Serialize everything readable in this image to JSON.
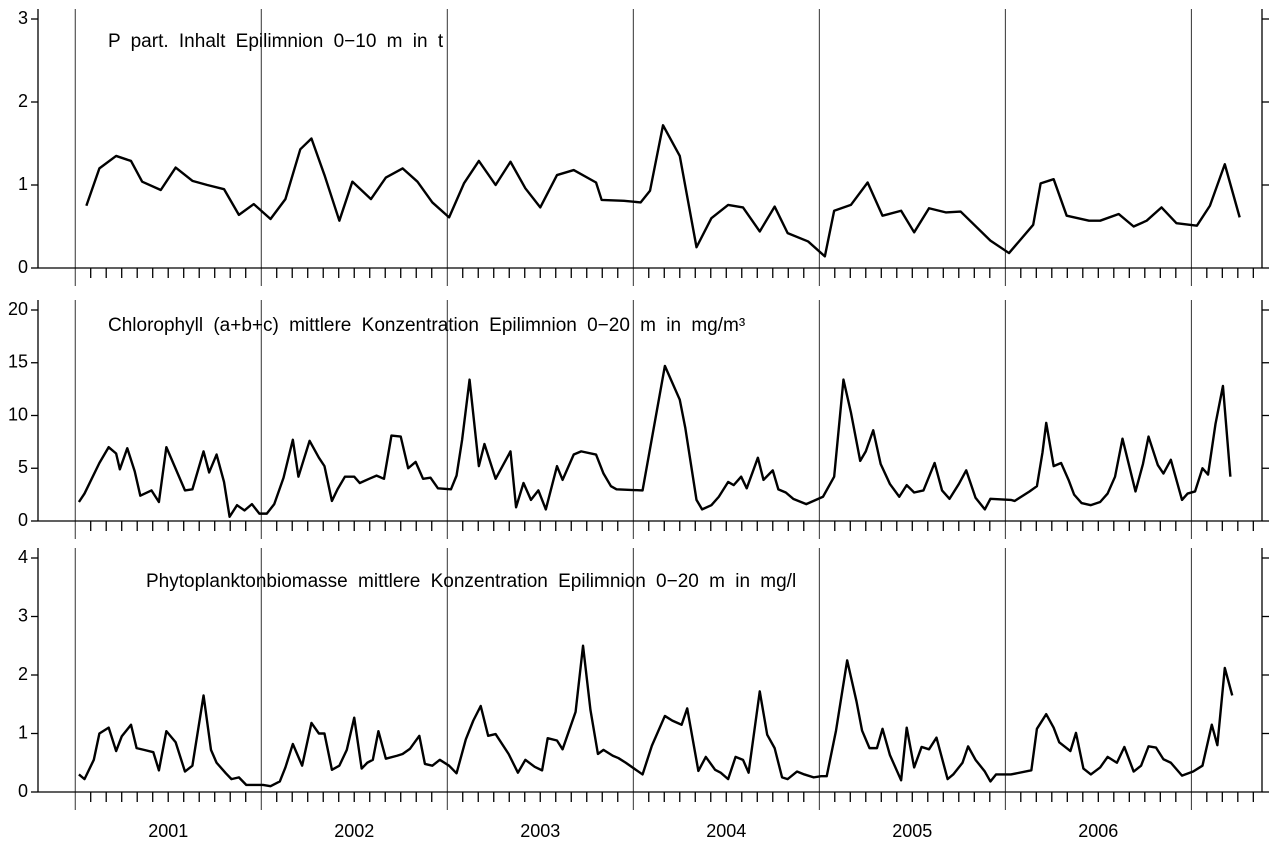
{
  "chart_data": [
    {
      "type": "line",
      "title": "P part. Inhalt Epilimnion 0−10 m in t",
      "xlim": [
        2000.8,
        2007.38
      ],
      "vlines": [
        2001,
        2002,
        2003,
        2004,
        2005,
        2006,
        2007
      ],
      "ylim": [
        0,
        3
      ],
      "yticks": [
        0,
        1,
        2,
        3
      ],
      "x": [
        2001.06,
        2001.13,
        2001.22,
        2001.3,
        2001.36,
        2001.46,
        2001.54,
        2001.63,
        2001.71,
        2001.8,
        2001.88,
        2001.96,
        2002.05,
        2002.13,
        2002.21,
        2002.27,
        2002.34,
        2002.42,
        2002.49,
        2002.59,
        2002.67,
        2002.76,
        2002.84,
        2002.92,
        2003.01,
        2003.09,
        2003.17,
        2003.26,
        2003.34,
        2003.42,
        2003.5,
        2003.59,
        2003.68,
        2003.8,
        2003.83,
        2003.95,
        2004.04,
        2004.09,
        2004.16,
        2004.25,
        2004.34,
        2004.42,
        2004.51,
        2004.59,
        2004.68,
        2004.76,
        2004.83,
        2004.94,
        2005.03,
        2005.08,
        2005.17,
        2005.26,
        2005.34,
        2005.44,
        2005.51,
        2005.59,
        2005.68,
        2005.76,
        2005.92,
        2006.02,
        2006.15,
        2006.19,
        2006.26,
        2006.33,
        2006.45,
        2006.51,
        2006.61,
        2006.69,
        2006.76,
        2006.84,
        2006.92,
        2007.03,
        2007.1,
        2007.18,
        2007.26
      ],
      "series": [
        {
          "color": "#000000",
          "values": [
            0.75,
            1.2,
            1.35,
            1.29,
            1.04,
            0.94,
            1.21,
            1.05,
            1.0,
            0.95,
            0.64,
            0.77,
            0.59,
            0.83,
            1.43,
            1.56,
            1.12,
            0.57,
            1.04,
            0.83,
            1.09,
            1.2,
            1.04,
            0.79,
            0.61,
            1.02,
            1.29,
            1.0,
            1.28,
            0.96,
            0.73,
            1.12,
            1.18,
            1.03,
            0.82,
            0.81,
            0.79,
            0.93,
            1.72,
            1.35,
            0.25,
            0.6,
            0.76,
            0.73,
            0.44,
            0.74,
            0.42,
            0.32,
            0.14,
            0.69,
            0.76,
            1.03,
            0.63,
            0.69,
            0.43,
            0.72,
            0.67,
            0.68,
            0.33,
            0.18,
            0.52,
            1.02,
            1.07,
            0.63,
            0.57,
            0.57,
            0.65,
            0.5,
            0.57,
            0.73,
            0.54,
            0.51,
            0.75,
            1.25,
            0.61
          ]
        }
      ]
    },
    {
      "type": "line",
      "title": "Chlorophyll (a+b+c) mittlere Konzentration Epilimnion 0−20 m in mg/m³",
      "xlim": [
        2000.8,
        2007.38
      ],
      "vlines": [
        2001,
        2002,
        2003,
        2004,
        2005,
        2006,
        2007
      ],
      "ylim": [
        0,
        20
      ],
      "yticks": [
        0,
        5,
        10,
        15,
        20
      ],
      "x": [
        2001.02,
        2001.05,
        2001.13,
        2001.18,
        2001.22,
        2001.24,
        2001.28,
        2001.32,
        2001.35,
        2001.41,
        2001.45,
        2001.49,
        2001.59,
        2001.63,
        2001.69,
        2001.72,
        2001.76,
        2001.8,
        2001.83,
        2001.87,
        2001.91,
        2001.95,
        2001.99,
        2002.03,
        2002.07,
        2002.12,
        2002.17,
        2002.2,
        2002.26,
        2002.31,
        2002.34,
        2002.38,
        2002.41,
        2002.45,
        2002.5,
        2002.53,
        2002.58,
        2002.62,
        2002.66,
        2002.7,
        2002.75,
        2002.79,
        2002.83,
        2002.87,
        2002.91,
        2002.95,
        2003.02,
        2003.05,
        2003.08,
        2003.12,
        2003.17,
        2003.2,
        2003.26,
        2003.34,
        2003.37,
        2003.41,
        2003.45,
        2003.49,
        2003.53,
        2003.59,
        2003.62,
        2003.68,
        2003.72,
        2003.8,
        2003.84,
        2003.88,
        2003.91,
        2004.05,
        2004.17,
        2004.25,
        2004.28,
        2004.34,
        2004.37,
        2004.42,
        2004.46,
        2004.51,
        2004.54,
        2004.58,
        2004.61,
        2004.67,
        2004.7,
        2004.75,
        2004.78,
        2004.82,
        2004.86,
        2004.93,
        2005.02,
        2005.08,
        2005.13,
        2005.17,
        2005.22,
        2005.25,
        2005.29,
        2005.33,
        2005.38,
        2005.43,
        2005.47,
        2005.51,
        2005.56,
        2005.62,
        2005.66,
        2005.7,
        2005.75,
        2005.79,
        2005.84,
        2005.89,
        2005.92,
        2006.03,
        2006.05,
        2006.13,
        2006.17,
        2006.2,
        2006.22,
        2006.26,
        2006.3,
        2006.34,
        2006.37,
        2006.41,
        2006.46,
        2006.51,
        2006.55,
        2006.59,
        2006.63,
        2006.7,
        2006.74,
        2006.77,
        2006.82,
        2006.85,
        2006.89,
        2006.95,
        2006.98,
        2007.02,
        2007.06,
        2007.09,
        2007.13,
        2007.17,
        2007.21
      ],
      "series": [
        {
          "color": "#000000",
          "values": [
            1.8,
            2.6,
            5.5,
            7.0,
            6.4,
            4.9,
            6.9,
            4.7,
            2.4,
            2.9,
            1.8,
            7.0,
            2.9,
            3.0,
            6.6,
            4.6,
            6.3,
            3.7,
            0.4,
            1.5,
            1.0,
            1.6,
            0.7,
            0.7,
            1.6,
            4.1,
            7.7,
            4.2,
            7.6,
            6.0,
            5.2,
            1.9,
            3.0,
            4.2,
            4.2,
            3.6,
            4.0,
            4.3,
            4.0,
            8.1,
            8.0,
            5.0,
            5.6,
            4.0,
            4.1,
            3.1,
            3.0,
            4.3,
            7.7,
            13.4,
            5.2,
            7.3,
            4.0,
            6.6,
            1.3,
            3.6,
            2.0,
            2.9,
            1.1,
            5.2,
            3.9,
            6.3,
            6.6,
            6.3,
            4.5,
            3.3,
            3.0,
            2.9,
            14.7,
            11.5,
            8.8,
            2.0,
            1.1,
            1.5,
            2.3,
            3.7,
            3.4,
            4.2,
            3.1,
            6.0,
            3.9,
            4.8,
            3.0,
            2.7,
            2.1,
            1.6,
            2.3,
            4.2,
            13.4,
            10.3,
            5.7,
            6.6,
            8.6,
            5.4,
            3.5,
            2.3,
            3.4,
            2.7,
            2.9,
            5.5,
            2.9,
            2.1,
            3.5,
            4.8,
            2.2,
            1.1,
            2.1,
            2.0,
            1.9,
            2.8,
            3.3,
            6.5,
            9.3,
            5.2,
            5.5,
            3.9,
            2.5,
            1.7,
            1.5,
            1.8,
            2.6,
            4.2,
            7.8,
            2.8,
            5.4,
            8.0,
            5.3,
            4.5,
            5.8,
            2.0,
            2.6,
            2.8,
            5.0,
            4.4,
            9.2,
            12.8,
            4.2
          ]
        }
      ]
    },
    {
      "type": "line",
      "title": "Phytoplanktonbiomasse mittlere Konzentration Epilimnion 0−20 m in mg/l",
      "xlim": [
        2000.8,
        2007.38
      ],
      "vlines": [
        2001,
        2002,
        2003,
        2004,
        2005,
        2006,
        2007
      ],
      "xticks": [
        {
          "value": 2001.5,
          "label": "2001"
        },
        {
          "value": 2002.5,
          "label": "2002"
        },
        {
          "value": 2003.5,
          "label": "2003"
        },
        {
          "value": 2004.5,
          "label": "2004"
        },
        {
          "value": 2005.5,
          "label": "2005"
        },
        {
          "value": 2006.5,
          "label": "2006"
        }
      ],
      "ylim": [
        0,
        4
      ],
      "yticks": [
        0,
        1,
        2,
        3,
        4
      ],
      "x": [
        2001.02,
        2001.05,
        2001.1,
        2001.13,
        2001.18,
        2001.22,
        2001.25,
        2001.3,
        2001.33,
        2001.37,
        2001.42,
        2001.45,
        2001.49,
        2001.54,
        2001.59,
        2001.63,
        2001.69,
        2001.73,
        2001.76,
        2001.81,
        2001.84,
        2001.88,
        2001.92,
        2001.96,
        2002.01,
        2002.05,
        2002.1,
        2002.13,
        2002.17,
        2002.22,
        2002.27,
        2002.31,
        2002.34,
        2002.38,
        2002.42,
        2002.46,
        2002.5,
        2002.54,
        2002.57,
        2002.6,
        2002.63,
        2002.67,
        2002.73,
        2002.76,
        2002.8,
        2002.85,
        2002.88,
        2002.92,
        2002.96,
        2003.01,
        2003.05,
        2003.1,
        2003.14,
        2003.18,
        2003.22,
        2003.26,
        2003.33,
        2003.38,
        2003.42,
        2003.47,
        2003.51,
        2003.54,
        2003.59,
        2003.62,
        2003.69,
        2003.73,
        2003.77,
        2003.81,
        2003.84,
        2003.89,
        2003.92,
        2003.96,
        2004.05,
        2004.1,
        2004.17,
        2004.21,
        2004.26,
        2004.29,
        2004.35,
        2004.39,
        2004.44,
        2004.47,
        2004.51,
        2004.55,
        2004.59,
        2004.62,
        2004.68,
        2004.72,
        2004.76,
        2004.8,
        2004.83,
        2004.88,
        2004.92,
        2004.97,
        2005.01,
        2005.04,
        2005.09,
        2005.15,
        2005.2,
        2005.23,
        2005.27,
        2005.31,
        2005.34,
        2005.38,
        2005.44,
        2005.47,
        2005.51,
        2005.55,
        2005.59,
        2005.63,
        2005.69,
        2005.72,
        2005.77,
        2005.8,
        2005.84,
        2005.89,
        2005.92,
        2005.95,
        2006.03,
        2006.14,
        2006.17,
        2006.22,
        2006.26,
        2006.29,
        2006.35,
        2006.38,
        2006.42,
        2006.46,
        2006.51,
        2006.55,
        2006.6,
        2006.64,
        2006.69,
        2006.73,
        2006.77,
        2006.81,
        2006.85,
        2006.89,
        2006.95,
        2007.01,
        2007.06,
        2007.11,
        2007.14,
        2007.18,
        2007.22
      ],
      "series": [
        {
          "color": "#000000",
          "values": [
            0.3,
            0.22,
            0.55,
            1.0,
            1.1,
            0.7,
            0.95,
            1.15,
            0.75,
            0.72,
            0.68,
            0.37,
            1.04,
            0.85,
            0.35,
            0.45,
            1.65,
            0.72,
            0.5,
            0.32,
            0.22,
            0.25,
            0.12,
            0.12,
            0.12,
            0.1,
            0.18,
            0.42,
            0.82,
            0.45,
            1.18,
            1.0,
            1.0,
            0.38,
            0.45,
            0.72,
            1.27,
            0.4,
            0.5,
            0.55,
            1.04,
            0.57,
            0.62,
            0.65,
            0.74,
            0.96,
            0.48,
            0.45,
            0.55,
            0.45,
            0.32,
            0.9,
            1.22,
            1.47,
            0.96,
            0.99,
            0.65,
            0.33,
            0.55,
            0.43,
            0.37,
            0.92,
            0.88,
            0.73,
            1.37,
            2.5,
            1.4,
            0.65,
            0.72,
            0.62,
            0.58,
            0.5,
            0.3,
            0.79,
            1.3,
            1.22,
            1.15,
            1.43,
            0.36,
            0.6,
            0.38,
            0.33,
            0.22,
            0.6,
            0.55,
            0.33,
            1.72,
            0.98,
            0.75,
            0.25,
            0.22,
            0.35,
            0.3,
            0.25,
            0.27,
            0.27,
            1.05,
            2.25,
            1.55,
            1.05,
            0.75,
            0.75,
            1.08,
            0.63,
            0.2,
            1.1,
            0.42,
            0.77,
            0.73,
            0.93,
            0.22,
            0.3,
            0.5,
            0.78,
            0.55,
            0.35,
            0.18,
            0.3,
            0.3,
            0.37,
            1.08,
            1.33,
            1.1,
            0.85,
            0.7,
            1.01,
            0.4,
            0.3,
            0.42,
            0.6,
            0.5,
            0.77,
            0.35,
            0.45,
            0.78,
            0.76,
            0.56,
            0.5,
            0.28,
            0.35,
            0.45,
            1.15,
            0.8,
            2.12,
            1.65
          ]
        }
      ]
    }
  ]
}
